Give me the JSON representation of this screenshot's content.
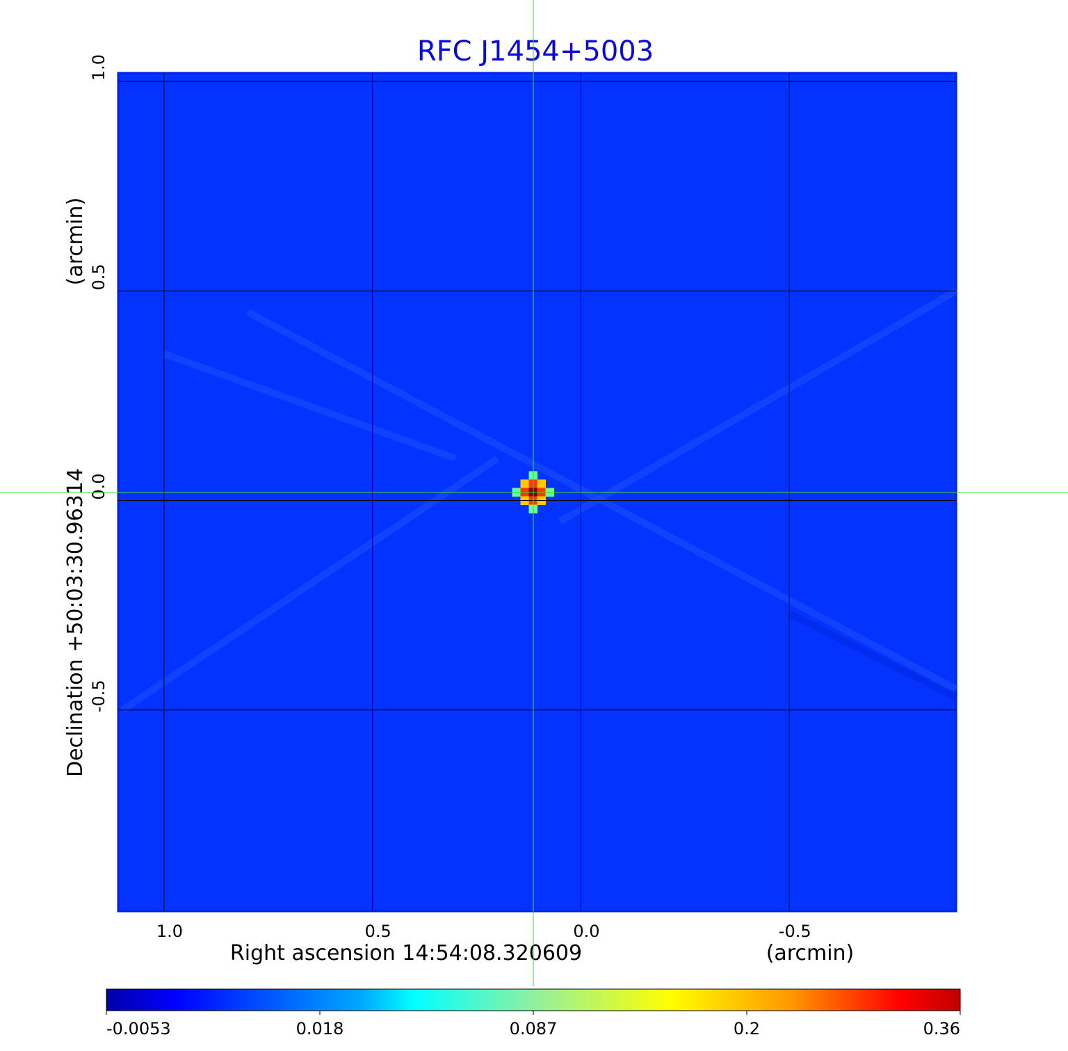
{
  "chart_data": {
    "type": "heatmap",
    "title": "RFC J1454+5003",
    "xlabel": "Right ascension  14:54:08.320609",
    "xunit": "(arcmin)",
    "ylabel": "Declination  +50:03:30.96314",
    "yunit": "(arcmin)",
    "xlim": [
      1.11,
      -0.9
    ],
    "ylim": [
      -0.98,
      1.02
    ],
    "x_ticks": [
      "1.0",
      "0.5",
      "0.0",
      "-0.5"
    ],
    "x_tick_values": [
      1.0,
      0.5,
      0.0,
      -0.5
    ],
    "y_ticks": [
      "1.0",
      "0.5",
      "0.0",
      "-0.5"
    ],
    "y_tick_values": [
      1.0,
      0.5,
      0.0,
      -0.5
    ],
    "grid": true,
    "grid_color": "#000000",
    "crosshair_color": "#33dd33",
    "background_value_color": "#0433ff",
    "colormap": "jet",
    "colorbar": {
      "orientation": "horizontal",
      "placement": "bottom",
      "ticks": [
        "-0.0053",
        "0.018",
        "0.087",
        "0.2",
        "0.36"
      ],
      "min": -0.0053,
      "max": 0.36
    },
    "source": {
      "x": 0.115,
      "y": 0.02,
      "peak": 0.36
    }
  }
}
